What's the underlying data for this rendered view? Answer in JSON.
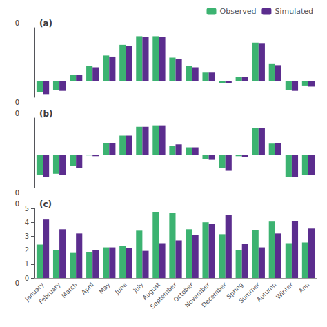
{
  "chart_data": [
    {
      "type": "bar",
      "title": "(a)",
      "categories": [
        "January",
        "February",
        "March",
        "April",
        "May",
        "June",
        "July",
        "August",
        "September",
        "October",
        "November",
        "December",
        "Spring",
        "Summer",
        "Autumn",
        "Winter",
        "Ann"
      ],
      "series": [
        {
          "name": "Observed",
          "color": "#3CB371",
          "values": [
            -0.1,
            -0.08,
            0.06,
            0.14,
            0.24,
            0.34,
            0.42,
            0.42,
            0.22,
            0.14,
            0.08,
            -0.02,
            0.04,
            0.36,
            0.16,
            -0.08,
            -0.04
          ]
        },
        {
          "name": "Simulated",
          "color": "#5B2D8E",
          "values": [
            -0.12,
            -0.09,
            0.06,
            0.13,
            0.23,
            0.33,
            0.41,
            0.41,
            0.21,
            0.13,
            0.08,
            -0.02,
            0.04,
            0.35,
            0.15,
            -0.09,
            -0.05
          ]
        }
      ],
      "ylim": [
        -0.15,
        0.5
      ],
      "yticks": [
        0
      ],
      "tick_labels": false,
      "grid": false,
      "legend": "upper right",
      "annotations": [
        "0",
        "0"
      ]
    },
    {
      "type": "bar",
      "title": "(b)",
      "categories": [
        "January",
        "February",
        "March",
        "April",
        "May",
        "June",
        "July",
        "August",
        "September",
        "October",
        "November",
        "December",
        "Spring",
        "Summer",
        "Autumn",
        "Winter",
        "Ann"
      ],
      "series": [
        {
          "name": "Observed",
          "color": "#3CB371",
          "values": [
            -0.28,
            -0.26,
            -0.15,
            -0.01,
            0.16,
            0.26,
            0.38,
            0.4,
            0.12,
            0.1,
            -0.06,
            -0.18,
            -0.02,
            0.36,
            0.15,
            -0.3,
            -0.28
          ]
        },
        {
          "name": "Simulated",
          "color": "#5B2D8E",
          "values": [
            -0.3,
            -0.28,
            -0.18,
            -0.02,
            0.16,
            0.26,
            0.38,
            0.4,
            0.14,
            0.1,
            -0.07,
            -0.22,
            -0.03,
            0.36,
            0.16,
            -0.3,
            -0.28
          ]
        }
      ],
      "ylim": [
        -0.45,
        0.5
      ],
      "yticks": [
        0
      ],
      "tick_labels": false,
      "grid": false,
      "annotations": [
        "0",
        "0"
      ]
    },
    {
      "type": "bar",
      "title": "(c)",
      "categories": [
        "January",
        "February",
        "March",
        "April",
        "May",
        "June",
        "July",
        "August",
        "September",
        "October",
        "November",
        "December",
        "Spring",
        "Summer",
        "Autumn",
        "Winter",
        "Ann"
      ],
      "series": [
        {
          "name": "Observed",
          "color": "#3CB371",
          "values": [
            2.4,
            2.0,
            1.8,
            1.85,
            2.2,
            2.3,
            3.4,
            4.7,
            4.65,
            3.5,
            4.0,
            3.15,
            2.0,
            3.45,
            4.05,
            2.5,
            2.55
          ]
        },
        {
          "name": "Simulated",
          "color": "#5B2D8E",
          "values": [
            4.2,
            3.5,
            3.2,
            2.0,
            2.2,
            2.15,
            1.95,
            2.5,
            2.7,
            3.1,
            3.9,
            4.5,
            2.45,
            2.2,
            3.2,
            4.1,
            3.55
          ]
        }
      ],
      "ylim": [
        0,
        5
      ],
      "yticks": [
        0,
        1,
        2,
        3,
        4,
        5
      ],
      "grid": false,
      "annotations": [
        "0",
        "0"
      ]
    }
  ]
}
